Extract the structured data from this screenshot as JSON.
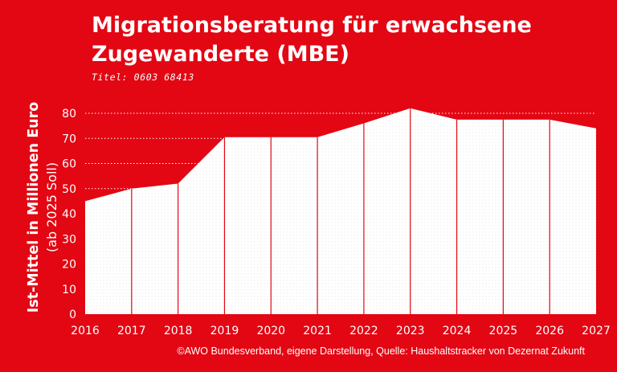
{
  "chart_data": {
    "type": "area",
    "title": "Migrationsberatung für erwachsene Zugewanderte (MBE)",
    "subtitle": "Titel: 0603 68413",
    "ylabel_line1": "Ist-Mittel in Millionen Euro",
    "ylabel_line2": "(ab 2025 Soll)",
    "xlabel": "",
    "x": [
      "2016",
      "2017",
      "2018",
      "2019",
      "2020",
      "2021",
      "2022",
      "2023",
      "2024",
      "2025",
      "2026",
      "2027"
    ],
    "values": [
      45,
      50,
      52,
      70.5,
      70.5,
      70.5,
      76,
      82,
      77.5,
      77.5,
      77.5,
      74
    ],
    "yticks": [
      0,
      10,
      20,
      30,
      40,
      50,
      60,
      70,
      80
    ],
    "ylim": [
      0,
      85
    ],
    "source": "©AWO Bundesverband, eigene Darstellung, Quelle: Haushaltstracker von Dezernat Zukunft",
    "colors": {
      "background": "#e30613",
      "area": "#ffffff",
      "text": "#ffffff",
      "divider": "#e30613"
    }
  }
}
